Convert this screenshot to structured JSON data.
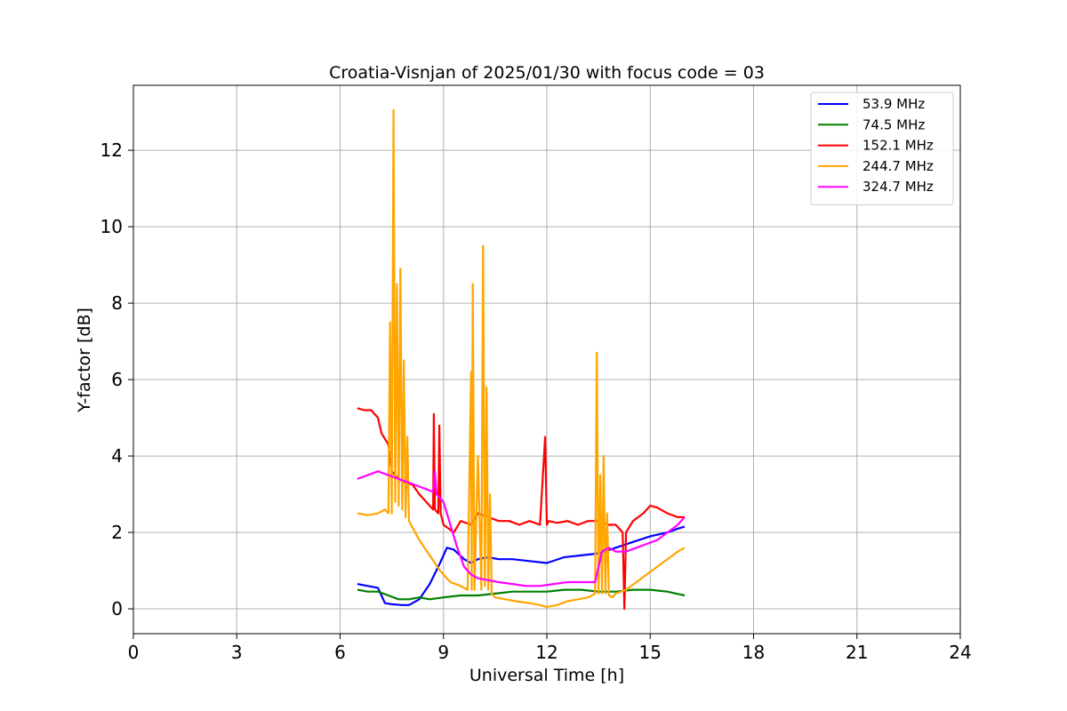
{
  "chart_data": {
    "type": "line",
    "title": "Croatia-Visnjan of 2025/01/30 with focus code = 03",
    "xlabel": "Universal Time [h]",
    "ylabel": "Y-factor [dB]",
    "xlim": [
      0,
      24
    ],
    "ylim": [
      -0.65,
      13.7
    ],
    "xticks": [
      0,
      3,
      6,
      9,
      12,
      15,
      18,
      21,
      24
    ],
    "yticks": [
      0,
      2,
      4,
      6,
      8,
      10,
      12
    ],
    "grid": true,
    "legend_position": "top-right",
    "series": [
      {
        "name": "  53.9 MHz",
        "color": "#0000ff",
        "x": [
          6.5,
          6.8,
          7.1,
          7.3,
          7.5,
          7.8,
          8.0,
          8.3,
          8.6,
          8.9,
          9.1,
          9.3,
          9.6,
          9.8,
          10.0,
          10.3,
          10.6,
          11.0,
          11.5,
          12.0,
          12.5,
          13.0,
          13.5,
          14.0,
          14.5,
          15.0,
          15.5,
          15.8,
          16.0
        ],
        "y": [
          0.65,
          0.6,
          0.55,
          0.15,
          0.12,
          0.1,
          0.1,
          0.25,
          0.65,
          1.2,
          1.6,
          1.55,
          1.3,
          1.2,
          1.3,
          1.35,
          1.3,
          1.3,
          1.25,
          1.2,
          1.35,
          1.4,
          1.45,
          1.6,
          1.75,
          1.9,
          2.0,
          2.1,
          2.15
        ]
      },
      {
        "name": "  74.5 MHz",
        "color": "#008000",
        "x": [
          6.5,
          6.8,
          7.1,
          7.4,
          7.7,
          8.0,
          8.3,
          8.6,
          9.0,
          9.5,
          10.0,
          10.5,
          11.0,
          11.5,
          12.0,
          12.5,
          13.0,
          13.5,
          14.0,
          14.5,
          15.0,
          15.5,
          16.0
        ],
        "y": [
          0.5,
          0.45,
          0.45,
          0.35,
          0.25,
          0.25,
          0.3,
          0.25,
          0.3,
          0.35,
          0.35,
          0.4,
          0.45,
          0.45,
          0.45,
          0.5,
          0.5,
          0.45,
          0.45,
          0.5,
          0.5,
          0.45,
          0.35
        ]
      },
      {
        "name": "152.1 MHz",
        "color": "#ff0000",
        "x": [
          6.5,
          6.7,
          6.9,
          7.1,
          7.2,
          7.4,
          7.5,
          7.7,
          7.9,
          8.1,
          8.3,
          8.5,
          8.7,
          8.72,
          8.75,
          8.85,
          8.88,
          8.92,
          9.0,
          9.3,
          9.5,
          9.8,
          10.0,
          10.3,
          10.6,
          10.9,
          11.2,
          11.5,
          11.8,
          11.95,
          12.0,
          12.05,
          12.3,
          12.6,
          12.9,
          13.2,
          13.5,
          13.8,
          14.0,
          14.2,
          14.25,
          14.3,
          14.5,
          14.8,
          15.0,
          15.2,
          15.5,
          15.8,
          16.0
        ],
        "y": [
          5.25,
          5.2,
          5.2,
          5.0,
          4.6,
          4.3,
          3.6,
          3.4,
          3.3,
          3.25,
          3.0,
          2.8,
          2.6,
          5.1,
          2.6,
          2.5,
          4.8,
          2.5,
          2.2,
          2.0,
          2.3,
          2.2,
          2.5,
          2.4,
          2.3,
          2.3,
          2.2,
          2.3,
          2.2,
          4.5,
          2.2,
          2.3,
          2.25,
          2.3,
          2.2,
          2.3,
          2.3,
          2.2,
          2.2,
          2.0,
          0.0,
          2.0,
          2.3,
          2.5,
          2.7,
          2.65,
          2.5,
          2.4,
          2.4
        ]
      },
      {
        "name": "244.7 MHz",
        "color": "#ffa500",
        "x": [
          6.5,
          6.8,
          7.1,
          7.3,
          7.4,
          7.45,
          7.5,
          7.55,
          7.6,
          7.65,
          7.7,
          7.75,
          7.8,
          7.85,
          7.9,
          7.95,
          8.0,
          8.3,
          8.6,
          8.9,
          9.2,
          9.5,
          9.7,
          9.8,
          9.82,
          9.85,
          9.9,
          10.0,
          10.1,
          10.15,
          10.2,
          10.25,
          10.3,
          10.35,
          10.4,
          10.5,
          10.8,
          11.1,
          11.5,
          11.8,
          12.0,
          12.3,
          12.6,
          12.9,
          13.2,
          13.4,
          13.45,
          13.5,
          13.55,
          13.6,
          13.65,
          13.7,
          13.75,
          13.8,
          13.9,
          14.0,
          14.3,
          14.6,
          14.9,
          15.2,
          15.5,
          15.8,
          16.0
        ],
        "y": [
          2.5,
          2.45,
          2.5,
          2.6,
          2.5,
          7.5,
          2.5,
          13.05,
          2.8,
          8.5,
          2.7,
          8.9,
          2.6,
          6.5,
          2.4,
          4.5,
          2.3,
          1.8,
          1.4,
          1.0,
          0.7,
          0.6,
          0.5,
          6.2,
          0.5,
          8.5,
          0.5,
          4.0,
          0.5,
          9.5,
          0.6,
          5.8,
          0.5,
          3.0,
          0.4,
          0.3,
          0.25,
          0.2,
          0.15,
          0.1,
          0.05,
          0.1,
          0.2,
          0.25,
          0.3,
          0.4,
          6.7,
          0.4,
          3.5,
          0.4,
          4.0,
          0.4,
          2.5,
          0.35,
          0.3,
          0.4,
          0.5,
          0.7,
          0.9,
          1.1,
          1.3,
          1.5,
          1.6
        ]
      },
      {
        "name": "324.7 MHz",
        "color": "#ff00ff",
        "x": [
          6.5,
          6.8,
          7.1,
          7.4,
          7.7,
          8.0,
          8.3,
          8.6,
          8.7,
          8.75,
          8.8,
          9.0,
          9.2,
          9.4,
          9.6,
          9.8,
          10.0,
          10.3,
          10.6,
          11.0,
          11.4,
          11.8,
          12.2,
          12.6,
          13.0,
          13.4,
          13.6,
          13.8,
          14.0,
          14.3,
          14.6,
          14.9,
          15.2,
          15.5,
          15.8,
          16.0
        ],
        "y": [
          3.4,
          3.5,
          3.6,
          3.5,
          3.4,
          3.3,
          3.2,
          3.1,
          3.05,
          3.6,
          3.0,
          2.8,
          2.2,
          1.6,
          1.1,
          0.9,
          0.8,
          0.75,
          0.7,
          0.65,
          0.6,
          0.6,
          0.65,
          0.7,
          0.7,
          0.7,
          1.5,
          1.6,
          1.5,
          1.5,
          1.6,
          1.7,
          1.8,
          2.0,
          2.2,
          2.4
        ]
      }
    ]
  }
}
